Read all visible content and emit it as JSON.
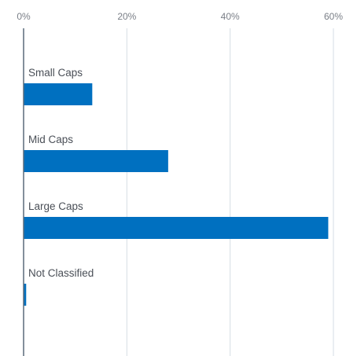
{
  "chart_data": {
    "type": "bar",
    "orientation": "horizontal",
    "categories": [
      "Small Caps",
      "Mid Caps",
      "Large Caps",
      "Not Classified"
    ],
    "values": [
      13.3,
      28.0,
      59.0,
      0.5
    ],
    "xlim": [
      0,
      60
    ],
    "xticks": [
      0,
      20,
      40,
      60
    ],
    "tick_labels": [
      "0%",
      "20%",
      "40%",
      "60%"
    ],
    "title": "",
    "xlabel": "",
    "ylabel": "",
    "grid": true,
    "bar_color": "#0070c0",
    "grid_color": "#d6dde4",
    "axis_color": "#5a6a7a"
  }
}
